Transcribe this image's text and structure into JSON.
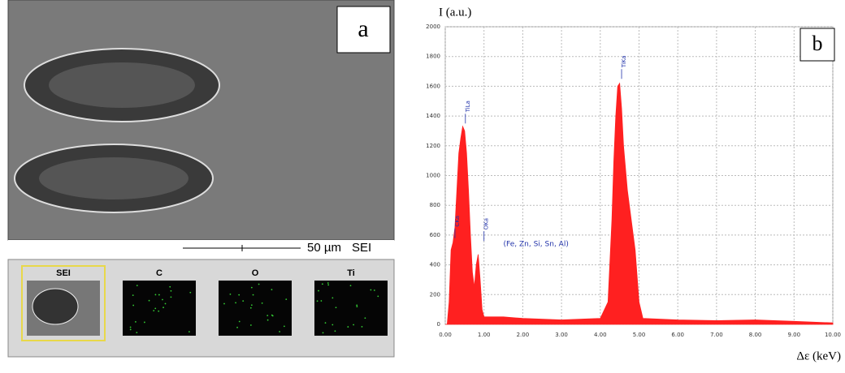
{
  "panel_a": {
    "label": "a",
    "scale_bar": "50 µm",
    "mode": "SEI",
    "maps": [
      "SEI",
      "C",
      "O",
      "Ti"
    ]
  },
  "chart_data": {
    "type": "area",
    "panel_label": "b",
    "y_label": "I (a.u.)",
    "x_label": "Δε (keV)",
    "color": "#ff2020",
    "x": [
      0.0,
      0.05,
      0.1,
      0.15,
      0.2,
      0.25,
      0.3,
      0.35,
      0.4,
      0.45,
      0.5,
      0.55,
      0.6,
      0.65,
      0.7,
      0.75,
      0.8,
      0.85,
      0.9,
      0.95,
      1.0,
      1.5,
      2.0,
      3.0,
      4.0,
      4.2,
      4.3,
      4.35,
      4.4,
      4.45,
      4.5,
      4.55,
      4.6,
      4.7,
      4.8,
      4.9,
      5.0,
      5.1,
      6.0,
      7.0,
      8.0,
      9.0,
      10.0
    ],
    "values": [
      0,
      0,
      150,
      500,
      550,
      650,
      900,
      1150,
      1250,
      1330,
      1300,
      1150,
      900,
      600,
      350,
      250,
      400,
      470,
      300,
      100,
      50,
      50,
      40,
      30,
      40,
      150,
      700,
      1100,
      1400,
      1600,
      1620,
      1450,
      1200,
      900,
      700,
      500,
      150,
      40,
      30,
      25,
      30,
      20,
      10
    ],
    "xlim": [
      0,
      10
    ],
    "ylim": [
      0,
      2000
    ],
    "xticks": [
      {
        "value": 0,
        "label": "0.00"
      },
      {
        "value": 1,
        "label": "1.00"
      },
      {
        "value": 2,
        "label": "2.00"
      },
      {
        "value": 3,
        "label": "3.00"
      },
      {
        "value": 4,
        "label": "4.00"
      },
      {
        "value": 5,
        "label": "5.00"
      },
      {
        "value": 6,
        "label": "6.00"
      },
      {
        "value": 7,
        "label": "7.00"
      },
      {
        "value": 8,
        "label": "8.00"
      },
      {
        "value": 9,
        "label": "9.00"
      },
      {
        "value": 10,
        "label": "10.00"
      }
    ],
    "yticks": [
      0,
      200,
      400,
      600,
      800,
      1000,
      1200,
      1400,
      1600,
      1800,
      2000
    ],
    "grid": true,
    "annotations": [
      {
        "text": "CKa",
        "x": 0.25,
        "y": 580
      },
      {
        "text": "TiLa",
        "x": 0.52,
        "y": 1350
      },
      {
        "text": "OKa",
        "x": 1.0,
        "y": 560
      },
      {
        "text": "TiKa",
        "x": 4.55,
        "y": 1650
      },
      {
        "text": "(Fe, Zn, Si, Sn, Al)",
        "x": 1.5,
        "y": 540
      }
    ]
  }
}
